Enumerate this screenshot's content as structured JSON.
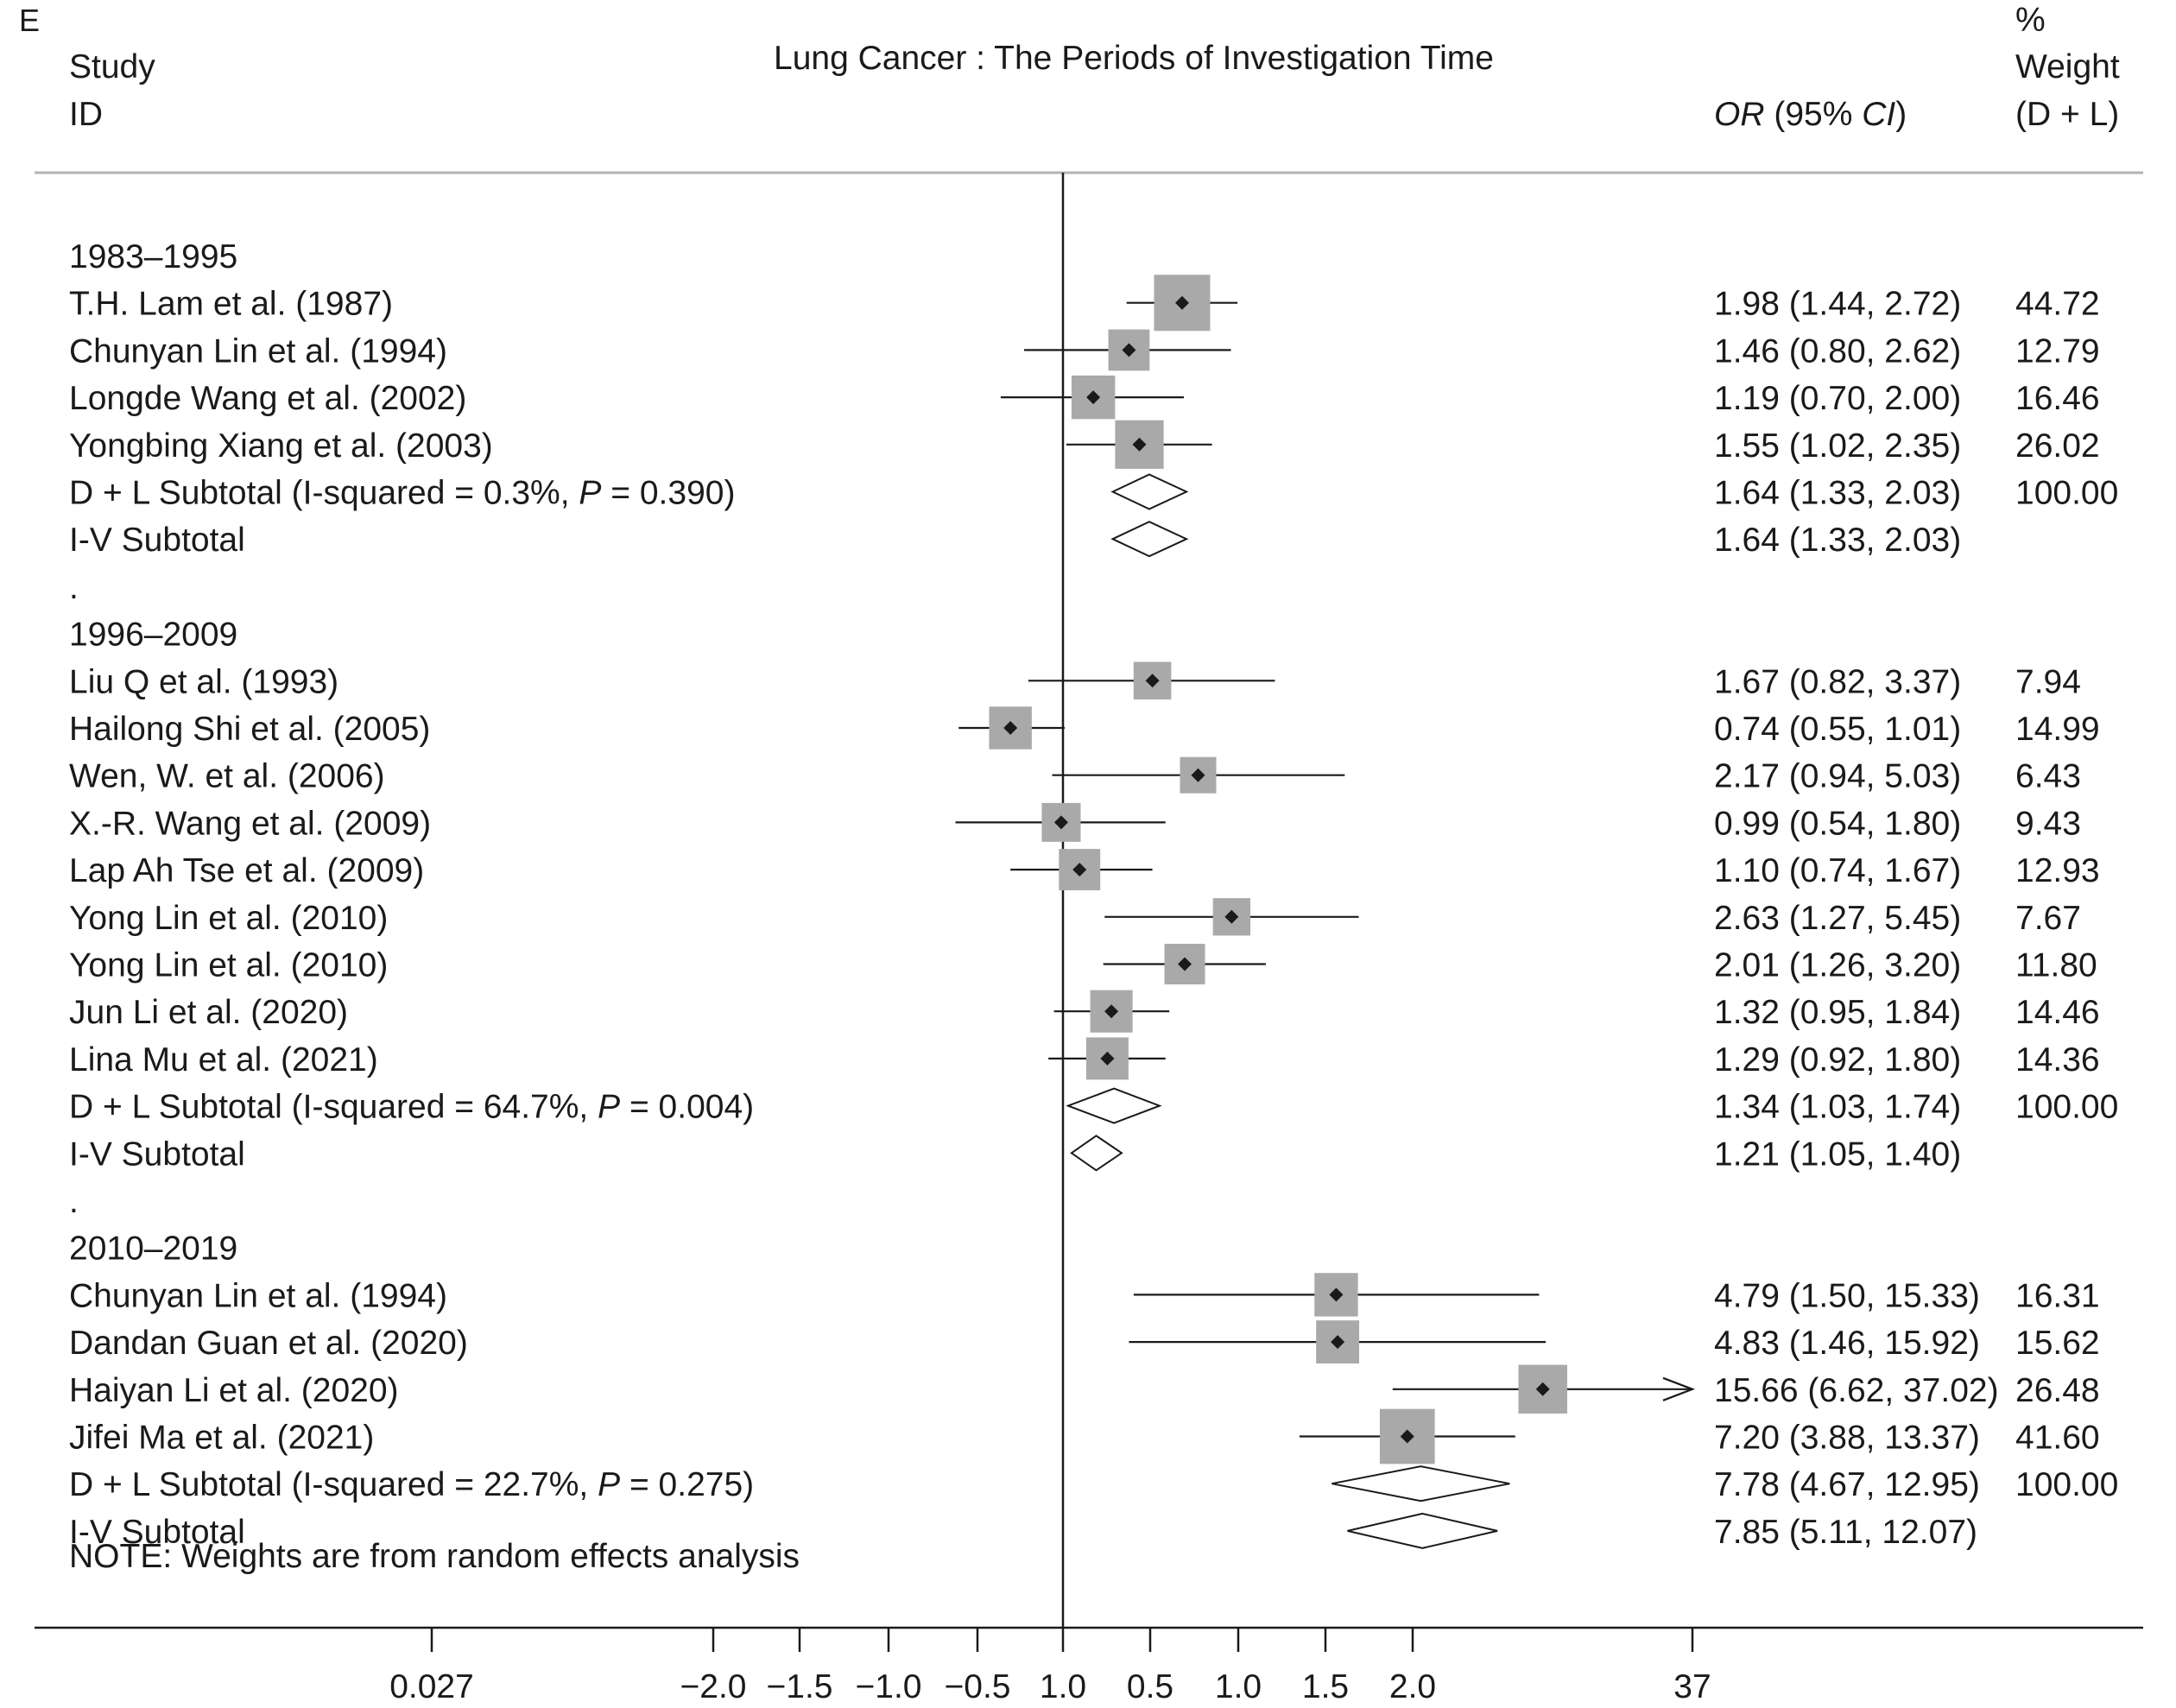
{
  "panel_label": "E",
  "title": "Lung Cancer : The Periods of Investigation Time",
  "header": {
    "study": "Study",
    "id": "ID",
    "or_ci": "OR (95% CI)",
    "weight_pct": "%",
    "weight": "Weight",
    "weight_sub": "(D + L)"
  },
  "note": "NOTE: Weights are from random effects analysis",
  "chart_data": {
    "type": "forest",
    "title": "Lung Cancer : The Periods of Investigation Time",
    "x_scale": "log (odds ratio)",
    "x_range_ln": [
      -3.61,
      3.61
    ],
    "null_value": 1.0,
    "x_tick_labels": [
      "0.027",
      "−2.0",
      "−1.5",
      "−1.0",
      "−0.5",
      "1.0",
      "0.5",
      "1.0",
      "1.5",
      "2.0",
      "37"
    ],
    "rows": [
      {
        "kind": "group",
        "label": "1983–1995"
      },
      {
        "kind": "study",
        "label": "T.H. Lam et al. (1987)",
        "or": 1.98,
        "lo": 1.44,
        "hi": 2.72,
        "ci_text": "1.98 (1.44, 2.72)",
        "weight": "44.72"
      },
      {
        "kind": "study",
        "label": "Chunyan Lin et al. (1994)",
        "or": 1.46,
        "lo": 0.8,
        "hi": 2.62,
        "ci_text": "1.46 (0.80, 2.62)",
        "weight": "12.79"
      },
      {
        "kind": "study",
        "label": "Longde Wang et al. (2002)",
        "or": 1.19,
        "lo": 0.7,
        "hi": 2.0,
        "ci_text": "1.19 (0.70, 2.00)",
        "weight": "16.46"
      },
      {
        "kind": "study",
        "label": "Yongbing Xiang et al. (2003)",
        "or": 1.55,
        "lo": 1.02,
        "hi": 2.35,
        "ci_text": "1.55 (1.02, 2.35)",
        "weight": "26.02"
      },
      {
        "kind": "subtotal",
        "label": "D + L Subtotal  (I-squared = 0.3%, ",
        "p_label": "P",
        "p_text": " = 0.390)",
        "or": 1.64,
        "lo": 1.33,
        "hi": 2.03,
        "ci_text": "1.64 (1.33, 2.03)",
        "weight": "100.00"
      },
      {
        "kind": "subtotal",
        "label": "I-V Subtotal",
        "or": 1.64,
        "lo": 1.33,
        "hi": 2.03,
        "ci_text": "1.64 (1.33, 2.03)",
        "weight": ""
      },
      {
        "kind": "dot",
        "label": "."
      },
      {
        "kind": "group",
        "label": "1996–2009"
      },
      {
        "kind": "study",
        "label": "Liu Q et al. (1993)",
        "or": 1.67,
        "lo": 0.82,
        "hi": 3.37,
        "ci_text": "1.67 (0.82, 3.37)",
        "weight": "7.94"
      },
      {
        "kind": "study",
        "label": "Hailong Shi et al. (2005)",
        "or": 0.74,
        "lo": 0.55,
        "hi": 1.01,
        "ci_text": "0.74 (0.55, 1.01)",
        "weight": "14.99"
      },
      {
        "kind": "study",
        "label": "Wen, W. et al. (2006)",
        "or": 2.17,
        "lo": 0.94,
        "hi": 5.03,
        "ci_text": "2.17 (0.94, 5.03)",
        "weight": "6.43"
      },
      {
        "kind": "study",
        "label": "X.-R. Wang et al. (2009)",
        "or": 0.99,
        "lo": 0.54,
        "hi": 1.8,
        "ci_text": "0.99 (0.54, 1.80)",
        "weight": "9.43"
      },
      {
        "kind": "study",
        "label": "Lap Ah Tse et al. (2009)",
        "or": 1.1,
        "lo": 0.74,
        "hi": 1.67,
        "ci_text": "1.10 (0.74, 1.67)",
        "weight": "12.93"
      },
      {
        "kind": "study",
        "label": "Yong Lin et al. (2010)",
        "or": 2.63,
        "lo": 1.27,
        "hi": 5.45,
        "ci_text": "2.63 (1.27, 5.45)",
        "weight": "7.67"
      },
      {
        "kind": "study",
        "label": "Yong Lin et al. (2010)",
        "or": 2.01,
        "lo": 1.26,
        "hi": 3.2,
        "ci_text": "2.01 (1.26, 3.20)",
        "weight": "11.80"
      },
      {
        "kind": "study",
        "label": "Jun Li et al. (2020)",
        "or": 1.32,
        "lo": 0.95,
        "hi": 1.84,
        "ci_text": "1.32 (0.95, 1.84)",
        "weight": "14.46"
      },
      {
        "kind": "study",
        "label": "Lina Mu et al. (2021)",
        "or": 1.29,
        "lo": 0.92,
        "hi": 1.8,
        "ci_text": "1.29 (0.92, 1.80)",
        "weight": "14.36"
      },
      {
        "kind": "subtotal",
        "label": "D + L Subtotal  (I-squared = 64.7%, ",
        "p_label": "P",
        "p_text": " = 0.004)",
        "or": 1.34,
        "lo": 1.03,
        "hi": 1.74,
        "ci_text": "1.34 (1.03, 1.74)",
        "weight": "100.00"
      },
      {
        "kind": "subtotal",
        "label": "I-V Subtotal",
        "or": 1.21,
        "lo": 1.05,
        "hi": 1.4,
        "ci_text": "1.21 (1.05, 1.40)",
        "weight": ""
      },
      {
        "kind": "dot",
        "label": "."
      },
      {
        "kind": "group",
        "label": "2010–2019"
      },
      {
        "kind": "study",
        "label": "Chunyan Lin et al. (1994)",
        "or": 4.79,
        "lo": 1.5,
        "hi": 15.33,
        "ci_text": "4.79 (1.50, 15.33)",
        "weight": "16.31"
      },
      {
        "kind": "study",
        "label": "Dandan Guan et al. (2020)",
        "or": 4.83,
        "lo": 1.46,
        "hi": 15.92,
        "ci_text": "4.83 (1.46, 15.92)",
        "weight": "15.62"
      },
      {
        "kind": "study",
        "label": "Haiyan Li et al. (2020)",
        "or": 15.66,
        "lo": 6.62,
        "hi": 37.02,
        "ci_text": "15.66 (6.62, 37.02)",
        "weight": "26.48",
        "arrow": true
      },
      {
        "kind": "study",
        "label": "Jifei Ma et al. (2021)",
        "or": 7.2,
        "lo": 3.88,
        "hi": 13.37,
        "ci_text": "7.20 (3.88, 13.37)",
        "weight": "41.60"
      },
      {
        "kind": "subtotal",
        "label": "D + L Subtotal  (I-squared = 22.7%, ",
        "p_label": "P",
        "p_text": " = 0.275)",
        "or": 7.78,
        "lo": 4.67,
        "hi": 12.95,
        "ci_text": "7.78 (4.67, 12.95)",
        "weight": "100.00"
      },
      {
        "kind": "subtotal",
        "label": "I-V Subtotal",
        "or": 7.85,
        "lo": 5.11,
        "hi": 12.07,
        "ci_text": "7.85 (5.11, 12.07)",
        "weight": ""
      }
    ]
  },
  "colors": {
    "box": "#a9a9a9",
    "line": "#1a1a1a",
    "rule": "#b3b3b3"
  }
}
